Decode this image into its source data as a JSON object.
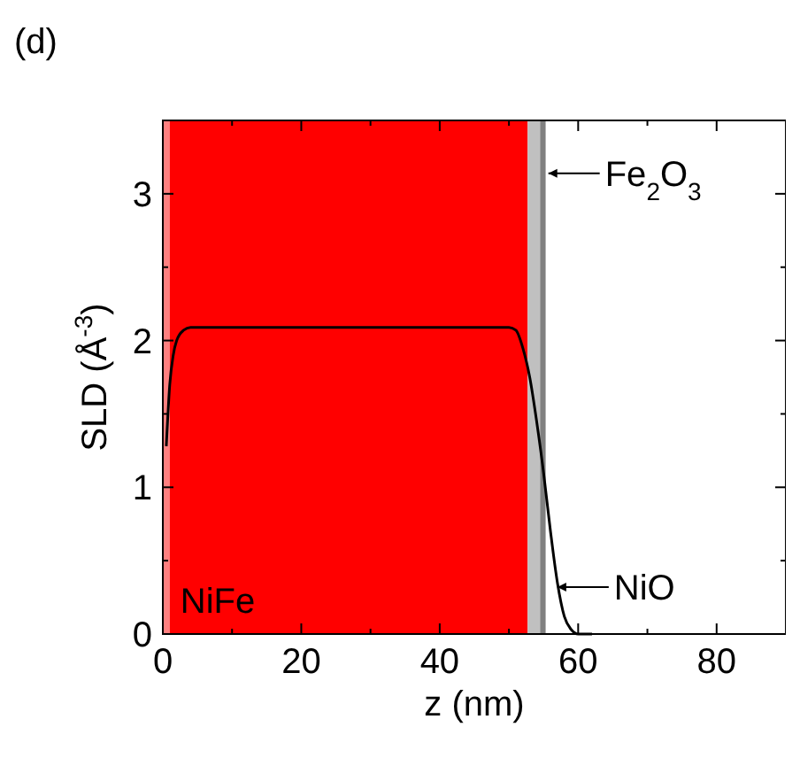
{
  "chart_data": {
    "type": "line",
    "title": "(d)",
    "xlabel": "z (nm)",
    "ylabel": "SLD (Å$^{-3}$)",
    "x": [
      0.5,
      1,
      1.5,
      2,
      3,
      4,
      50,
      51,
      52,
      53,
      54,
      55,
      56,
      57,
      58,
      59,
      60,
      62
    ],
    "series": [
      {
        "color": "#000000",
        "values": [
          1.28,
          1.7,
          1.9,
          2.0,
          2.07,
          2.09,
          2.09,
          2.07,
          1.95,
          1.75,
          1.45,
          1.1,
          0.7,
          0.35,
          0.12,
          0.03,
          0.0,
          0.0
        ]
      }
    ],
    "xlim": [
      0,
      90
    ],
    "ylim": [
      0,
      3.5
    ],
    "xticks": [
      0,
      {
        "value": 10,
        "label": null
      },
      20,
      {
        "value": 30,
        "label": null
      },
      40,
      {
        "value": 50,
        "label": null
      },
      60,
      {
        "value": 70,
        "label": null
      },
      80,
      {
        "value": 90,
        "label": null
      }
    ],
    "yticks": [
      0,
      {
        "value": 0.5,
        "label": null
      },
      1,
      {
        "value": 1.5,
        "label": null
      },
      2,
      {
        "value": 2.5,
        "label": null
      },
      3,
      {
        "value": 3.5,
        "label": null
      }
    ],
    "bands": [
      {
        "axis": "x",
        "from": 0,
        "to": 1,
        "color": "#ff8080"
      },
      {
        "axis": "x",
        "from": 1,
        "to": 52.7,
        "color": "#ff0000",
        "label": "NiFe"
      },
      {
        "axis": "x",
        "from": 52.7,
        "to": 54.5,
        "color": "#c0c0c0"
      },
      {
        "axis": "x",
        "from": 54.5,
        "to": 55.3,
        "color": "#808080"
      }
    ],
    "annotations": [
      {
        "text": "Fe$_{2}$O$_{3}$",
        "x": 55.7,
        "y": 3.14
      },
      {
        "text": "NiO",
        "x": 57,
        "y": 0.32
      }
    ],
    "grid": false,
    "marker": "none",
    "line_style": "solid"
  }
}
